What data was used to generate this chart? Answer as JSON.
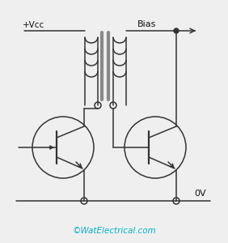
{
  "bg_color": "#efefef",
  "line_color": "#333333",
  "core_color": "#888888",
  "text_color": "#111111",
  "watermark_color": "#00b5c8",
  "watermark": "©WatElectrical.com",
  "label_vcc": "+Vcc",
  "label_bias": "Bias",
  "label_0v": "0V",
  "fig_width": 2.82,
  "fig_height": 3.0,
  "dpi": 100
}
